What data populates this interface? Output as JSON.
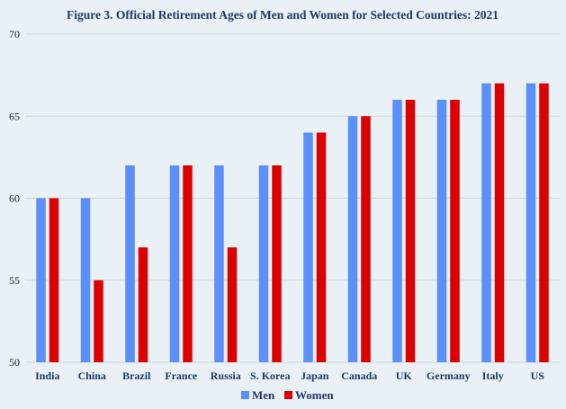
{
  "chart_data": {
    "type": "bar",
    "title": "Figure 3. Official Retirement Ages of Men and Women for Selected Countries: 2021",
    "xlabel": "",
    "ylabel": "",
    "categories": [
      "India",
      "China",
      "Brazil",
      "France",
      "Russia",
      "S. Korea",
      "Japan",
      "Canada",
      "UK",
      "Germany",
      "Italy",
      "US"
    ],
    "series": [
      {
        "name": "Men",
        "color": "#5b8ff9",
        "values": [
          60,
          60,
          62,
          62,
          62,
          62,
          64,
          65,
          66,
          66,
          67,
          67
        ]
      },
      {
        "name": "Women",
        "color": "#dd0000",
        "values": [
          60,
          55,
          57,
          62,
          57,
          62,
          64,
          65,
          66,
          66,
          67,
          67
        ]
      }
    ],
    "ylim": [
      50,
      70
    ],
    "yticks": [
      50,
      55,
      60,
      65,
      70
    ],
    "grid": true,
    "legend_position": "bottom-center"
  }
}
